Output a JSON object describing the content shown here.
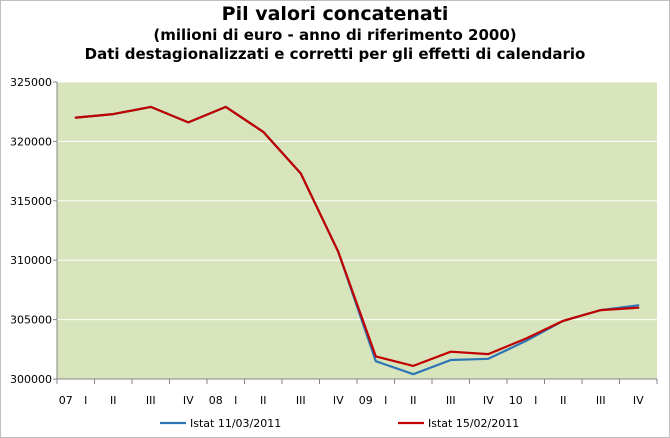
{
  "chart_data": {
    "type": "line",
    "title": "Pil valori concatenati",
    "subtitle1": "(milioni di euro - anno di riferimento 2000)",
    "subtitle2": "Dati destagionalizzati e corretti per gli effetti di calendario",
    "xlabel": "",
    "ylabel": "",
    "ylim": [
      300000,
      325000
    ],
    "yticks": [
      "300000",
      "305000",
      "310000",
      "315000",
      "320000",
      "325000"
    ],
    "x_year_labels": [
      {
        "index": 0,
        "label": "07"
      },
      {
        "index": 4,
        "label": "08"
      },
      {
        "index": 8,
        "label": "09"
      },
      {
        "index": 12,
        "label": "10"
      }
    ],
    "categories": [
      "I",
      "II",
      "III",
      "IV",
      "I",
      "II",
      "III",
      "IV",
      "I",
      "II",
      "III",
      "IV",
      "I",
      "II",
      "III",
      "IV"
    ],
    "grid": true,
    "legend_position": "bottom",
    "series": [
      {
        "name": "Istat 11/03/2011",
        "color": "#2e75b6",
        "values": [
          322000,
          322300,
          322900,
          321600,
          322900,
          320800,
          317300,
          310700,
          301500,
          300400,
          301600,
          301700,
          303200,
          304900,
          305800,
          306200
        ]
      },
      {
        "name": "Istat 15/02/2011",
        "color": "#c00000",
        "values": [
          322000,
          322300,
          322900,
          321600,
          322900,
          320800,
          317300,
          310700,
          301900,
          301100,
          302300,
          302100,
          303400,
          304900,
          305800,
          306000
        ]
      }
    ]
  },
  "colors": {
    "plot_background": "#d8e4bc",
    "gridline": "#ffffff"
  }
}
